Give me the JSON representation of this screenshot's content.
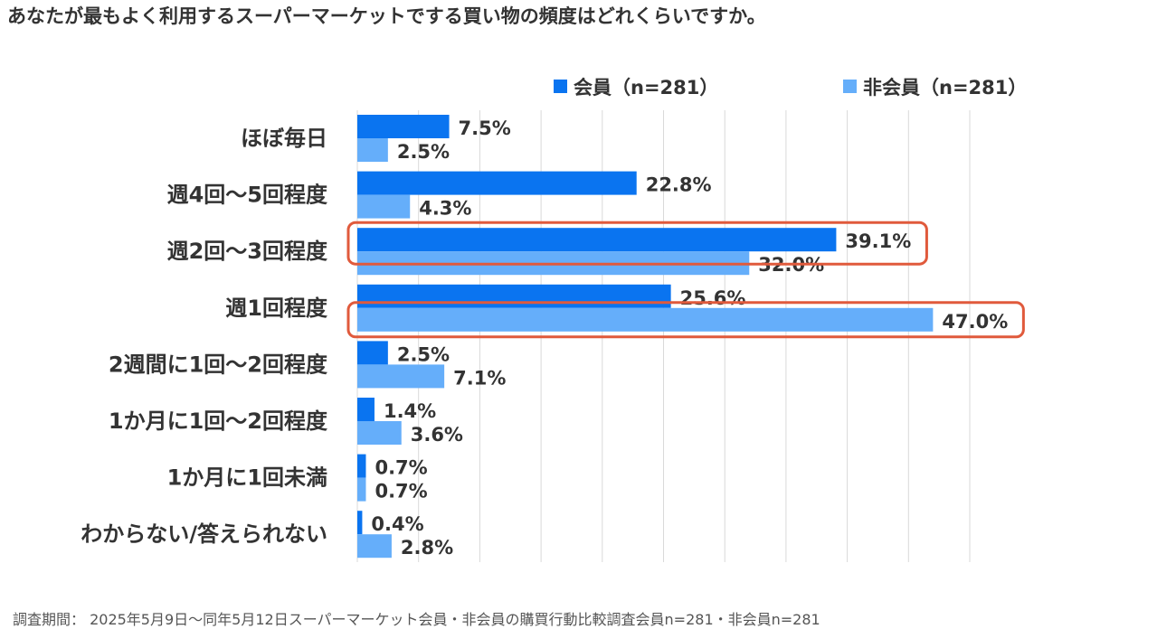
{
  "title": "あなたが最もよく利用するスーパーマーケットでする買い物の頻度はどれくらいですか。",
  "footnote": "調査期間： 2025年5月9日〜同年5月12日スーパーマーケット会員・非会員の購買行動比較調査会員n=281・非会員n=281",
  "colors": {
    "member": "#0a74f0",
    "non_member": "#65aefa",
    "highlight": "#e05a3c",
    "grid": "#d9d9d9"
  },
  "chart_data": {
    "type": "bar",
    "orientation": "horizontal",
    "title": "あなたが最もよく利用するスーパーマーケットでする買い物の頻度はどれくらいですか。",
    "categories": [
      "ほぼ毎日",
      "週4回〜5回程度",
      "週2回〜3回程度",
      "週1回程度",
      "2週間に1回〜2回程度",
      "1か月に1回〜2回程度",
      "1か月に1回未満",
      "わからない/答えられない"
    ],
    "series": [
      {
        "name": "会員（n=281）",
        "values": [
          7.5,
          22.8,
          39.1,
          25.6,
          2.5,
          1.4,
          0.7,
          0.4
        ],
        "labels": [
          "7.5%",
          "22.8%",
          "39.1%",
          "25.6%",
          "2.5%",
          "1.4%",
          "0.7%",
          "0.4%"
        ]
      },
      {
        "name": "非会員（n=281）",
        "values": [
          2.5,
          4.3,
          32.0,
          47.0,
          7.1,
          3.6,
          0.7,
          2.8
        ],
        "labels": [
          "2.5%",
          "4.3%",
          "32.0%",
          "47.0%",
          "7.1%",
          "3.6%",
          "0.7%",
          "2.8%"
        ]
      }
    ],
    "xlim": [
      0,
      50
    ],
    "grid": true,
    "legend": "top-right",
    "highlighted": [
      {
        "category_index": 2,
        "series_index": 0
      },
      {
        "category_index": 3,
        "series_index": 1
      }
    ]
  }
}
